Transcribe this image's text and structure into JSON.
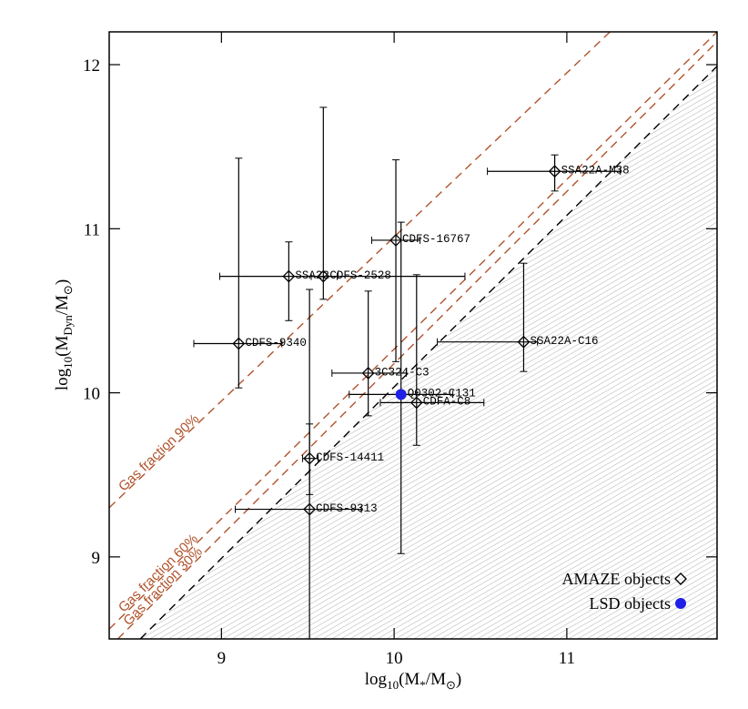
{
  "chart_data": {
    "type": "scatter",
    "xlabel_parts": [
      "log",
      "10",
      "(M",
      "*",
      "/M",
      "⊙",
      ")"
    ],
    "ylabel_parts": [
      "log",
      "10",
      "(M",
      "Dyn",
      "/M",
      "⊙",
      ")"
    ],
    "xlim": [
      8.35,
      11.87
    ],
    "ylim": [
      8.5,
      12.2
    ],
    "xticks": [
      9,
      10,
      11
    ],
    "yticks": [
      9,
      10,
      11,
      12
    ],
    "reference_line": {
      "color": "#000000",
      "x": [
        8.53,
        11.87
      ],
      "y": [
        8.5,
        11.99
      ]
    },
    "gas_lines": [
      {
        "label": "Gas fraction 90%",
        "color": "#b0532c",
        "x": [
          8.35,
          11.25
        ],
        "y": [
          9.3,
          12.2
        ]
      },
      {
        "label": "Gas fraction 60%",
        "color": "#b0532c",
        "x": [
          8.35,
          11.87
        ],
        "y": [
          8.56,
          12.2
        ]
      },
      {
        "label": "Gas fraction 30%",
        "color": "#b0532c",
        "x": [
          8.4,
          11.87
        ],
        "y": [
          8.5,
          12.14
        ]
      }
    ],
    "series": [
      {
        "name": "AMAZE objects",
        "marker": "diamond",
        "color": "#000000",
        "labels": [
          "SSA22A-M38",
          "CDFS-16767",
          "SSA22",
          "CDFS-2528",
          "CDFS-9340",
          "SSA22A-C16",
          "3C324-C3",
          "CDFA-C8",
          "CDFS-14411",
          "CDFS-9313"
        ],
        "x": [
          10.93,
          10.01,
          9.39,
          9.59,
          9.1,
          10.75,
          9.85,
          10.13,
          9.51,
          9.51
        ],
        "values": [
          11.35,
          10.93,
          10.71,
          10.71,
          10.3,
          10.31,
          10.12,
          9.94,
          9.6,
          9.29
        ],
        "x_low": [
          10.54,
          9.87,
          8.99,
          9.52,
          8.84,
          10.25,
          9.64,
          9.92,
          9.47,
          9.08
        ],
        "x_high": [
          11.31,
          10.15,
          9.67,
          10.41,
          9.35,
          10.83,
          10.07,
          10.52,
          9.56,
          9.81
        ],
        "y_low": [
          11.23,
          10.19,
          10.44,
          10.57,
          10.03,
          10.13,
          9.86,
          9.68,
          9.38,
          8.5
        ],
        "y_high": [
          11.45,
          11.42,
          10.92,
          11.74,
          11.43,
          10.79,
          10.62,
          10.72,
          9.81,
          10.63
        ]
      },
      {
        "name": "LSD objects",
        "marker": "circle",
        "color": "#1f1fe8",
        "labels": [
          "Q0302-C131"
        ],
        "x": [
          10.04
        ],
        "values": [
          9.99
        ],
        "x_low": [
          9.74
        ],
        "x_high": [
          10.34
        ],
        "y_low": [
          9.02
        ],
        "y_high": [
          11.04
        ]
      }
    ]
  }
}
